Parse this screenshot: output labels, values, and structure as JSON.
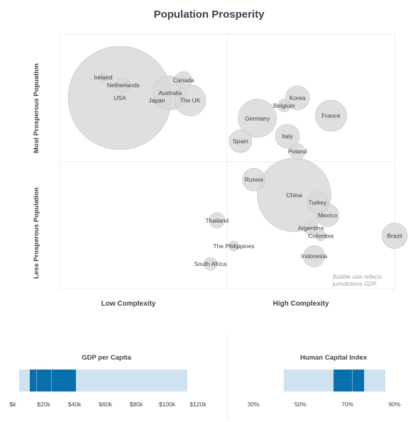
{
  "title": "Population Prosperity",
  "chart_data": [
    {
      "type": "scatter",
      "subtype": "bubble",
      "quadrant_labels": {
        "y_top": "Most Prosperous Popuation",
        "y_bottom": "Less Prosperous Population",
        "x_left": "Low Complexity",
        "x_right": "High Complexity"
      },
      "xlim": [
        0,
        100
      ],
      "ylim": [
        0,
        100
      ],
      "grid": true,
      "note": [
        "Bubble size reflects",
        "jurisdictions GDP"
      ],
      "bubble_color": "#d9d9d9",
      "points": [
        {
          "label": "USA",
          "x": 18,
          "y": 75,
          "size": 73
        },
        {
          "label": "Ireland",
          "x": 13,
          "y": 83,
          "size": 6
        },
        {
          "label": "Netherlands",
          "x": 19,
          "y": 80,
          "size": 10
        },
        {
          "label": "Canada",
          "x": 37,
          "y": 82,
          "size": 12
        },
        {
          "label": "Australia",
          "x": 33,
          "y": 77,
          "size": 24
        },
        {
          "label": "Japan",
          "x": 29,
          "y": 74,
          "size": 5
        },
        {
          "label": "The UK",
          "x": 39,
          "y": 74,
          "size": 22
        },
        {
          "label": "Korea",
          "x": 71,
          "y": 75,
          "size": 17
        },
        {
          "label": "Belgium",
          "x": 67,
          "y": 72,
          "size": 9
        },
        {
          "label": "Germany",
          "x": 59,
          "y": 67,
          "size": 27
        },
        {
          "label": "France",
          "x": 81,
          "y": 68,
          "size": 22
        },
        {
          "label": "Italy",
          "x": 68,
          "y": 60,
          "size": 17
        },
        {
          "label": "Spain",
          "x": 54,
          "y": 58,
          "size": 16
        },
        {
          "label": "Poland",
          "x": 71,
          "y": 54,
          "size": 11
        },
        {
          "label": "Russia",
          "x": 58,
          "y": 43,
          "size": 16
        },
        {
          "label": "China",
          "x": 70,
          "y": 37,
          "size": 52
        },
        {
          "label": "Turkey",
          "x": 77,
          "y": 34,
          "size": 15
        },
        {
          "label": "Mexico",
          "x": 80,
          "y": 29,
          "size": 16
        },
        {
          "label": "Argentina",
          "x": 75,
          "y": 24,
          "size": 10
        },
        {
          "label": "Colombia",
          "x": 78,
          "y": 21,
          "size": 7
        },
        {
          "label": "Brazil",
          "x": 100,
          "y": 21,
          "size": 18
        },
        {
          "label": "Thailand",
          "x": 47,
          "y": 27,
          "size": 11
        },
        {
          "label": "The Philippines",
          "x": 52,
          "y": 17,
          "size": 7
        },
        {
          "label": "Indonesia",
          "x": 76,
          "y": 13,
          "size": 15
        },
        {
          "label": "South Africa",
          "x": 45,
          "y": 10,
          "size": 9
        }
      ]
    },
    {
      "type": "bar",
      "subtype": "range",
      "title": "GDP per Capita",
      "tick_labels": [
        "$k",
        "$20k",
        "$40k",
        "$60k",
        "$80k",
        "$100k",
        "$120k"
      ],
      "xlim": [
        0,
        120
      ],
      "range": [
        4,
        113
      ],
      "highlight": [
        11,
        41
      ],
      "markers": [
        15,
        25
      ]
    },
    {
      "type": "bar",
      "subtype": "range",
      "title": "Human Capital Index",
      "tick_labels": [
        "30%",
        "50%",
        "70%",
        "90%"
      ],
      "xlim": [
        30,
        90
      ],
      "range": [
        43,
        86
      ],
      "highlight": [
        64,
        77
      ],
      "markers": [
        72
      ]
    }
  ]
}
